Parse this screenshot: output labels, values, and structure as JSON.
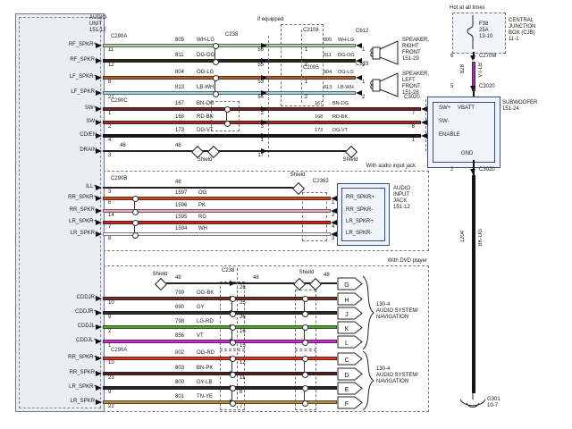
{
  "title_block": {
    "audio_unit": "AUDIO\nUNIT\n151-12"
  },
  "tags": {
    "if_equipped": "if equipped",
    "with_audio_input_jack": "With audio input jack",
    "with_dvd_player": "With DVD player",
    "shield": "Shield",
    "drain_wire": "48"
  },
  "top_section": {
    "left_conn": "C290A",
    "inline_conn": "C238",
    "ifeq_conn_a": "C2108",
    "ifeq_conn_b": "C2095",
    "rows": [
      {
        "label": "RF_SPKR+",
        "pin": "11",
        "wire": "805",
        "code": "WH-LG",
        "hex": "#b2d0a2",
        "inline_pin": "56",
        "ifeq_pin": "1",
        "out_pin": "1"
      },
      {
        "label": "RF_SPKR-",
        "pin": "12",
        "wire": "811",
        "code": "DG-OG",
        "hex": "#2e2418",
        "inline_pin": "55",
        "ifeq_pin": "2",
        "out_pin": "2"
      },
      {
        "label": "LF_SPKR+",
        "pin": "8",
        "wire": "804",
        "code": "OG-LG",
        "hex": "#b25a28",
        "inline_pin": "53",
        "ifeq_pin": "1",
        "out_pin": "1"
      },
      {
        "label": "LF_SPKR-",
        "pin": "21",
        "wire": "813",
        "code": "LB-WH",
        "hex": "#9ed2d4",
        "inline_pin": "54",
        "ifeq_pin": "2",
        "out_pin": "2"
      }
    ],
    "speakers": [
      {
        "conn": "C612",
        "label": "SPEAKER,\nRIGHT\nFRONT\n151-29"
      },
      {
        "conn": "C523",
        "label": "SPEAKER,\nLEFT\nFRONT\n151-28"
      }
    ]
  },
  "sub_section": {
    "left_conn": "C290C",
    "out_conn": "C3020",
    "rows": [
      {
        "label": "SW+",
        "pin": "1",
        "wire": "167",
        "code": "BN-OG",
        "hex": "#6b2420",
        "inline_pin": "2",
        "out_pin": "7"
      },
      {
        "label": "SW-",
        "pin": "2",
        "wire": "168",
        "code": "RD-BK",
        "hex": "#a32828",
        "inline_pin": "3",
        "out_pin": "8"
      },
      {
        "label": "CD/EN",
        "pin": "4",
        "wire": "173",
        "code": "DG-VT",
        "hex": "#17171c",
        "inline_pin": "1",
        "out_pin": "1"
      }
    ],
    "drain": {
      "label": "DRAIN",
      "pin": "3",
      "wire": "48",
      "inline_pin": "17"
    }
  },
  "subwoofer": {
    "label": "SUBWOOFER\n151-24",
    "sw_plus": "SW+",
    "sw_minus": "SW-",
    "enable": "ENABLE",
    "vbatt": "VBATT",
    "gnd": "GND"
  },
  "jack_section": {
    "left_conn": "C290B",
    "out_conn": "C2362",
    "ill_row": {
      "label": "ILL+",
      "pin": "3",
      "wire": "48"
    },
    "rows": [
      {
        "label": "RR_SPKR+",
        "pin": "6",
        "wire": "1597",
        "code": "OG",
        "hex": "#c64a26",
        "out_pin": "1",
        "dev_pin": "RR_SPKR+"
      },
      {
        "label": "RR_SPKR-",
        "pin": "14",
        "wire": "1596",
        "code": "PK",
        "hex": "#eaa8b6",
        "out_pin": "2",
        "dev_pin": "RR_SPKR-"
      },
      {
        "label": "LR_SPKR+",
        "pin": "7",
        "wire": "1595",
        "code": "RD",
        "hex": "#c32525",
        "out_pin": "4",
        "dev_pin": "LR_SPKR+"
      },
      {
        "label": "LR_SPKR-",
        "pin": "8",
        "wire": "1594",
        "code": "WH",
        "hex": "#fafafa",
        "out_pin": "3",
        "dev_pin": "LR_SPKR-"
      }
    ],
    "device_label": "AUDIO\nINPUT\nJACK\n151-12"
  },
  "dvd_section": {
    "inline_conn": "C238",
    "left_conn": "C290A",
    "shield_row_a": {
      "wire": "48",
      "inline_pin": "26",
      "terminal": "G"
    },
    "rows_a": [
      {
        "label": "CDDJR-",
        "pin": "10",
        "wire": "799",
        "code": "OG-BK",
        "hex": "#703028",
        "inline_pin": "35",
        "terminal": "H"
      },
      {
        "label": "CDDJR+",
        "pin": "9",
        "wire": "690",
        "code": "GY",
        "hex": "#2c2c2c",
        "inline_pin": "36",
        "terminal": "J"
      },
      {
        "label": "CDDJL-",
        "pin": "2",
        "wire": "798",
        "code": "LG-RD",
        "hex": "#4ea332",
        "inline_pin": "16",
        "terminal": "K"
      },
      {
        "label": "CDDJL+",
        "pin": "1",
        "wire": "856",
        "code": "VT",
        "hex": "#cc30cc",
        "inline_pin": "15",
        "terminal": "L"
      }
    ],
    "rows_b": [
      {
        "label": "RR_SPKR+",
        "pin": "10",
        "wire": "802",
        "code": "OG-RD",
        "hex": "#d8341f",
        "inline_pin": "12",
        "terminal": "C"
      },
      {
        "label": "RR_SPKR-",
        "pin": "23",
        "wire": "803",
        "code": "BN-PK",
        "hex": "#4e231d",
        "inline_pin": "11",
        "terminal": "D"
      },
      {
        "label": "LR_SPKR+",
        "pin": "9",
        "wire": "800",
        "code": "GY-LB",
        "hex": "#26262c",
        "inline_pin": "8",
        "terminal": "E"
      },
      {
        "label": "LR_SPKR-",
        "pin": "22",
        "wire": "801",
        "code": "TN-YE",
        "hex": "#b28c4a",
        "inline_pin": "7",
        "terminal": "F"
      }
    ],
    "nav_label_a": "130-4\nAUDIO SYSTEM/\nNAVIGATION",
    "nav_label_b": "130-4\nAUDIO SYSTEM/\nNAVIGATION"
  },
  "cjb": {
    "hot": "Hot at all times",
    "label": "CENTRAL\nJUNCTION\nBOX (CJB)\n11-1",
    "fuse": "F38\n25A\n13-10"
  },
  "batt_feed": {
    "pin_top": "6",
    "conn_top": "C270M",
    "wire": "828",
    "code": "VT-LB",
    "hex": "#9a35a0",
    "pin_bot": "5",
    "conn_bot": "C3020"
  },
  "gnd_feed": {
    "pin_top": "2",
    "conn_top": "C3020",
    "wire": "1204",
    "code": "BK-OG",
    "hex": "#141414",
    "ground": "G301\n10-7"
  }
}
